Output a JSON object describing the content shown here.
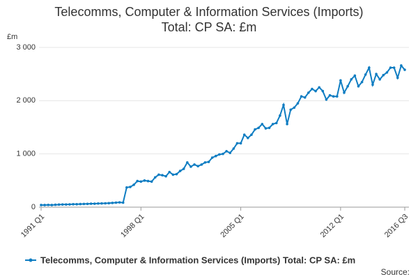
{
  "chart_data": {
    "type": "line",
    "title": "Telecomms, Computer & Information Services (Imports)",
    "subtitle": "Total: CP SA: £m",
    "y_label": "£m",
    "source": "Source:",
    "categories": [
      "1991 Q1",
      null,
      null,
      null,
      null,
      null,
      null,
      null,
      null,
      null,
      null,
      null,
      null,
      null,
      null,
      null,
      null,
      null,
      null,
      null,
      null,
      null,
      null,
      null,
      null,
      null,
      null,
      null,
      "1998 Q1",
      null,
      null,
      null,
      null,
      null,
      null,
      null,
      null,
      null,
      null,
      null,
      null,
      null,
      null,
      null,
      null,
      null,
      null,
      null,
      null,
      null,
      null,
      null,
      null,
      null,
      null,
      null,
      "2005 Q1",
      null,
      null,
      null,
      null,
      null,
      null,
      null,
      null,
      null,
      null,
      null,
      null,
      null,
      null,
      null,
      null,
      null,
      null,
      null,
      null,
      null,
      null,
      null,
      null,
      null,
      null,
      null,
      "2012 Q1",
      null,
      null,
      null,
      null,
      null,
      null,
      null,
      null,
      null,
      null,
      null,
      null,
      null,
      null,
      null,
      null,
      null,
      "2016 Q3"
    ],
    "series": [
      {
        "name": "Telecomms, Computer & Information Services (Imports) Total: CP SA: £m",
        "color": "#0f7dc2",
        "values": [
          40,
          40,
          42,
          40,
          45,
          48,
          50,
          50,
          52,
          55,
          55,
          58,
          60,
          62,
          65,
          65,
          68,
          70,
          72,
          75,
          80,
          85,
          90,
          85,
          370,
          380,
          420,
          490,
          480,
          500,
          490,
          480,
          560,
          610,
          600,
          580,
          660,
          610,
          620,
          680,
          720,
          840,
          760,
          800,
          770,
          800,
          840,
          850,
          930,
          960,
          990,
          1000,
          1050,
          1020,
          1100,
          1200,
          1200,
          1360,
          1300,
          1360,
          1460,
          1490,
          1560,
          1480,
          1490,
          1560,
          1580,
          1720,
          1920,
          1560,
          1830,
          1870,
          1950,
          2080,
          2060,
          2150,
          2220,
          2180,
          2250,
          2180,
          2020,
          2100,
          2080,
          2080,
          2380,
          2150,
          2270,
          2400,
          2470,
          2270,
          2350,
          2490,
          2620,
          2300,
          2500,
          2400,
          2480,
          2530,
          2620,
          2620,
          2430,
          2660,
          2580
        ]
      }
    ],
    "ylim": [
      0,
      3000
    ],
    "yticks": [
      0,
      {
        "value": 1000,
        "label": "1 000"
      },
      {
        "value": 2000,
        "label": "2 000"
      },
      {
        "value": 3000,
        "label": "3 000"
      }
    ],
    "grid": true
  }
}
